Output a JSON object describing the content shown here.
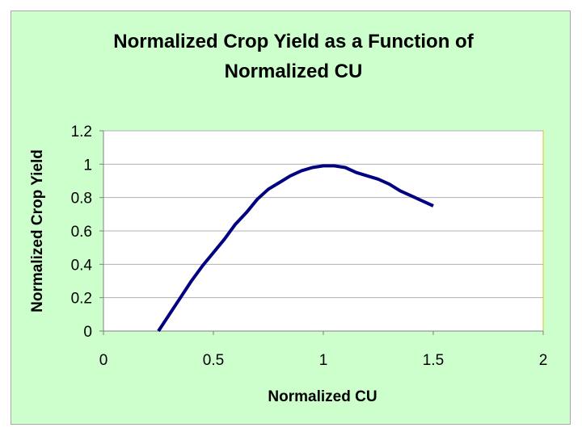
{
  "chart_data": {
    "type": "line",
    "title_lines": [
      "Normalized Crop Yield as a Function of",
      "Normalized CU"
    ],
    "xlabel": "Normalized CU",
    "ylabel": "Normalized Crop Yield",
    "xlim": [
      0,
      2
    ],
    "ylim": [
      0,
      1.2
    ],
    "x_ticks": [
      "0",
      "0.5",
      "1",
      "1.5",
      "2"
    ],
    "y_ticks": [
      "0",
      "0.2",
      "0.4",
      "0.6",
      "0.8",
      "1",
      "1.2"
    ],
    "grid": "horizontal",
    "legend": "none",
    "series": [
      {
        "x": [
          0.25,
          0.3,
          0.35,
          0.4,
          0.45,
          0.5,
          0.55,
          0.6,
          0.65,
          0.7,
          0.75,
          0.8,
          0.85,
          0.9,
          0.95,
          1.0,
          1.05,
          1.1,
          1.15,
          1.2,
          1.25,
          1.3,
          1.35,
          1.4,
          1.45,
          1.5
        ],
        "y": [
          0.0,
          0.1,
          0.2,
          0.3,
          0.39,
          0.47,
          0.55,
          0.64,
          0.71,
          0.79,
          0.85,
          0.89,
          0.93,
          0.96,
          0.98,
          0.99,
          0.99,
          0.98,
          0.95,
          0.93,
          0.91,
          0.88,
          0.84,
          0.81,
          0.78,
          0.75
        ],
        "color": "#000080"
      }
    ]
  },
  "colors": {
    "background": "#ccffcc",
    "plot_area": "#ffffff",
    "plot_border": "#e8c020",
    "grid": "#b0b0b0",
    "axis": "#808080",
    "line": "#000080"
  }
}
